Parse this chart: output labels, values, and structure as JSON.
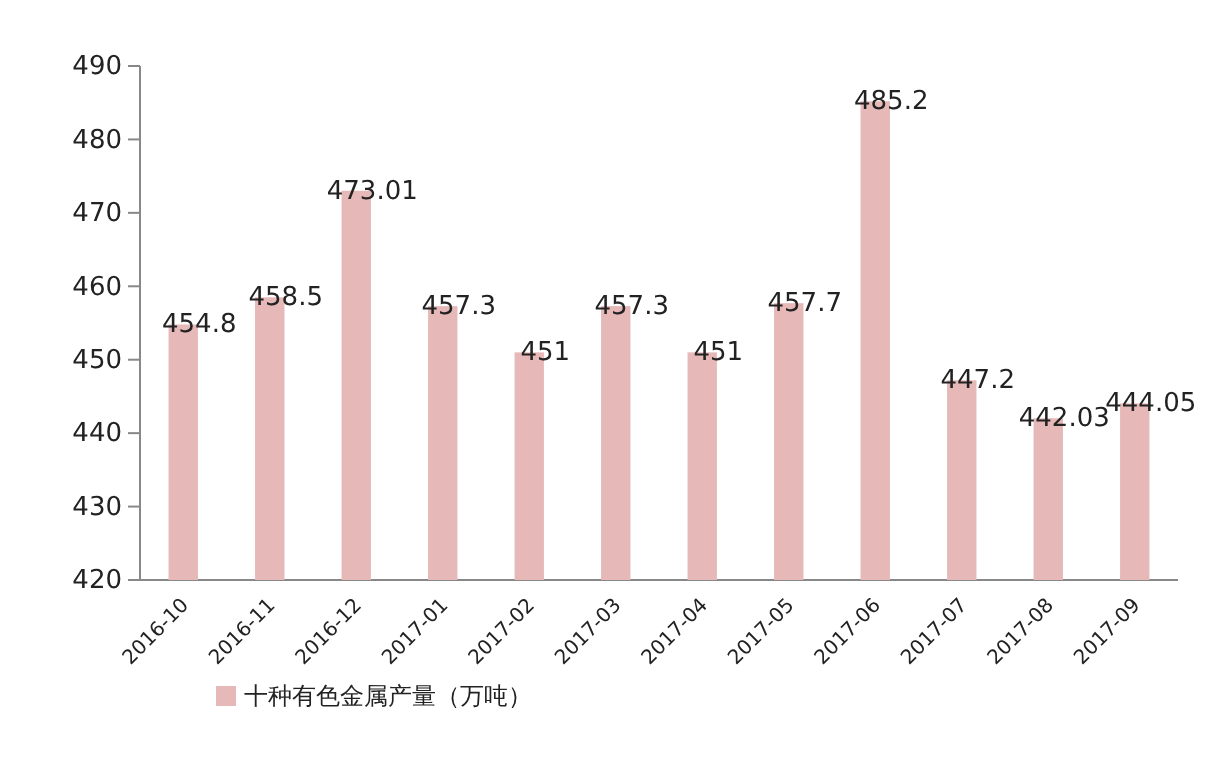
{
  "chart_data": {
    "type": "bar",
    "categories": [
      "2016-10",
      "2016-11",
      "2016-12",
      "2017-01",
      "2017-02",
      "2017-03",
      "2017-04",
      "2017-05",
      "2017-06",
      "2017-07",
      "2017-08",
      "2017-09"
    ],
    "series": [
      {
        "name": "十种有色金属产量（万吨）",
        "color": "#e6b9b8",
        "values": [
          454.8,
          458.5,
          473.01,
          457.3,
          451,
          457.3,
          451,
          457.7,
          485.2,
          447.2,
          442.03,
          444.05
        ]
      }
    ],
    "ylim": [
      420,
      490
    ],
    "yticks": [
      420,
      430,
      440,
      450,
      460,
      470,
      480,
      490
    ],
    "data_labels": true,
    "legend": "bottom left",
    "grid": false
  }
}
